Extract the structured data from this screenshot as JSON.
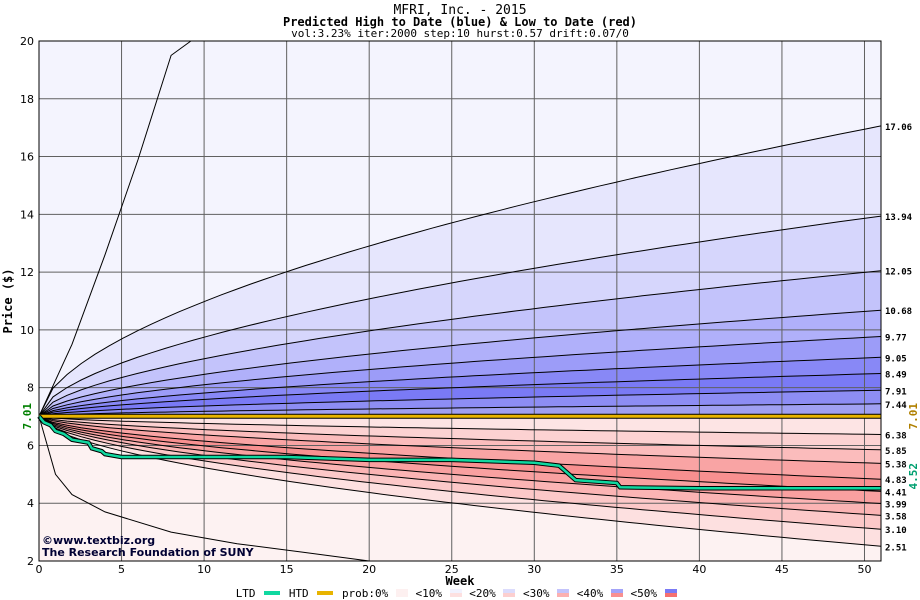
{
  "header": {
    "title": "MFRI, Inc. - 2015",
    "subtitle": "Predicted High to Date (blue) &  Low to Date (red)",
    "params": "vol:3.23% iter:2000 step:10 hurst:0.57 drift:0.07/0"
  },
  "watermark": {
    "line1": "www.textbiz.org",
    "line2": "The Research Foundation of SUNY"
  },
  "legend": {
    "ltd": "LTD",
    "htd": "HTD",
    "prob": "prob:0%",
    "items": [
      "<10%",
      "<20%",
      "<30%",
      "<40%",
      "<50%"
    ]
  },
  "chart_data": {
    "type": "area",
    "title": "MFRI, Inc. - 2015",
    "xlabel": "Week",
    "ylabel": "Price ($)",
    "xlim": [
      0,
      51
    ],
    "ylim": [
      2,
      20
    ],
    "x_ticks": [
      0,
      5,
      10,
      15,
      20,
      25,
      30,
      35,
      40,
      45,
      50
    ],
    "y_ticks": [
      2,
      4,
      6,
      8,
      10,
      12,
      14,
      16,
      18,
      20
    ],
    "grid": true,
    "start_price": "7.01",
    "current_ltd": "4.52",
    "start_label_right": "7.01",
    "colors": {
      "htd_line": "#e8b400",
      "ltd_line": "#10d8a0",
      "start_label": "#008000",
      "start_label_right": "#b08000",
      "ltd_label": "#00a070"
    },
    "high_envelopes": [
      {
        "end_label": "17.06",
        "end": 17.06
      },
      {
        "end_label": "13.94",
        "end": 13.94
      },
      {
        "end_label": "12.05",
        "end": 12.05
      },
      {
        "end_label": "10.68",
        "end": 10.68
      },
      {
        "end_label": "9.77",
        "end": 9.77
      },
      {
        "end_label": "9.05",
        "end": 9.05
      },
      {
        "end_label": "8.49",
        "end": 8.49
      },
      {
        "end_label": "7.91",
        "end": 7.91
      },
      {
        "end_label": "7.44",
        "end": 7.44
      }
    ],
    "high_outer": [
      [
        0,
        7.01
      ],
      [
        2,
        9.5
      ],
      [
        4,
        12.6
      ],
      [
        6,
        15.9
      ],
      [
        8,
        19.5
      ],
      [
        9.2,
        20
      ]
    ],
    "low_envelopes": [
      {
        "end_label": "6.38",
        "end": 6.38
      },
      {
        "end_label": "5.85",
        "end": 5.85
      },
      {
        "end_label": "5.38",
        "end": 5.38
      },
      {
        "end_label": "4.83",
        "end": 4.83
      },
      {
        "end_label": "4.41",
        "end": 4.41
      },
      {
        "end_label": "3.99",
        "end": 3.99
      },
      {
        "end_label": "3.58",
        "end": 3.58
      },
      {
        "end_label": "3.10",
        "end": 3.1
      },
      {
        "end_label": "2.51",
        "end": 2.51
      }
    ],
    "low_outer": [
      [
        0,
        7.01
      ],
      [
        1,
        5.0
      ],
      [
        2,
        4.3
      ],
      [
        4,
        3.7
      ],
      [
        8,
        3.0
      ],
      [
        12,
        2.6
      ],
      [
        16,
        2.3
      ],
      [
        20,
        2.0
      ]
    ],
    "htd_series": [
      [
        0,
        7.01
      ],
      [
        51,
        7.01
      ]
    ],
    "ltd_series": [
      [
        0,
        7.01
      ],
      [
        0.3,
        6.8
      ],
      [
        0.7,
        6.7
      ],
      [
        1.0,
        6.5
      ],
      [
        1.5,
        6.4
      ],
      [
        2.0,
        6.2
      ],
      [
        3.0,
        6.1
      ],
      [
        3.2,
        5.9
      ],
      [
        3.8,
        5.8
      ],
      [
        4.0,
        5.7
      ],
      [
        5.0,
        5.6
      ],
      [
        15,
        5.6
      ],
      [
        20,
        5.5
      ],
      [
        25,
        5.5
      ],
      [
        30,
        5.4
      ],
      [
        31.5,
        5.3
      ],
      [
        32.5,
        4.8
      ],
      [
        35,
        4.7
      ],
      [
        35.2,
        4.55
      ],
      [
        40,
        4.52
      ],
      [
        51,
        4.52
      ]
    ]
  }
}
